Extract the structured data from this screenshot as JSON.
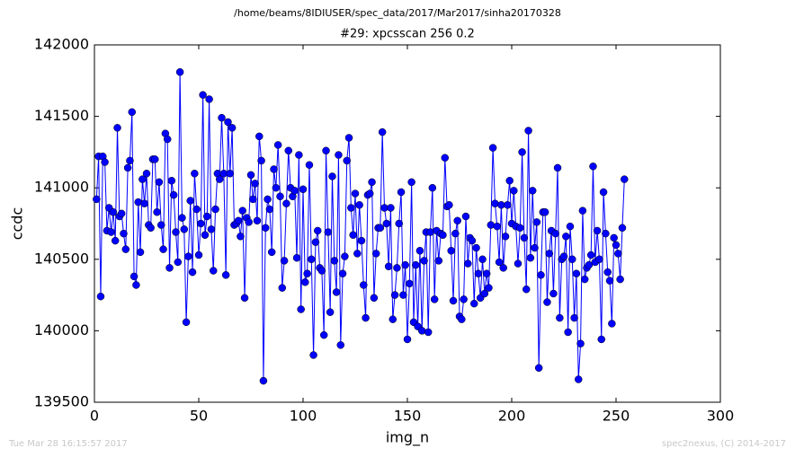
{
  "chart_data": {
    "type": "line",
    "suptitle": "/home/beams/8IDIUSER/spec_data/2017/Mar2017/sinha20170328",
    "title": "#29: xpcsscan 256 0.2",
    "xlabel": "img_n",
    "ylabel": "ccdc",
    "footer_left": "Tue Mar 28 16:15:57 2017",
    "footer_right": "spec2nexus, (C) 2014-2017",
    "color": "#0000ff",
    "marker": "o",
    "grid": false,
    "xlim": [
      0,
      300
    ],
    "xticks": [
      0,
      50,
      100,
      150,
      200,
      250,
      300
    ],
    "ylim": [
      139500,
      142000
    ],
    "yticks": [
      139500,
      140000,
      140500,
      141000,
      141500,
      142000
    ],
    "x": [
      1,
      2,
      3,
      4,
      5,
      6,
      7,
      8,
      9,
      10,
      11,
      12,
      13,
      14,
      15,
      16,
      17,
      18,
      19,
      20,
      21,
      22,
      23,
      24,
      25,
      26,
      27,
      28,
      29,
      30,
      31,
      32,
      33,
      34,
      35,
      36,
      37,
      38,
      39,
      40,
      41,
      42,
      43,
      44,
      45,
      46,
      47,
      48,
      49,
      50,
      51,
      52,
      53,
      54,
      55,
      56,
      57,
      58,
      59,
      60,
      61,
      62,
      63,
      64,
      65,
      66,
      67,
      68,
      69,
      70,
      71,
      72,
      73,
      74,
      75,
      76,
      77,
      78,
      79,
      80,
      81,
      82,
      83,
      84,
      85,
      86,
      87,
      88,
      89,
      90,
      91,
      92,
      93,
      94,
      95,
      96,
      97,
      98,
      99,
      100,
      101,
      102,
      103,
      104,
      105,
      106,
      107,
      108,
      109,
      110,
      111,
      112,
      113,
      114,
      115,
      116,
      117,
      118,
      119,
      120,
      121,
      122,
      123,
      124,
      125,
      126,
      127,
      128,
      129,
      130,
      131,
      132,
      133,
      134,
      135,
      136,
      137,
      138,
      139,
      140,
      141,
      142,
      143,
      144,
      145,
      146,
      147,
      148,
      149,
      150,
      151,
      152,
      153,
      154,
      155,
      156,
      157,
      158,
      159,
      160,
      161,
      162,
      163,
      164,
      165,
      166,
      167,
      168,
      169,
      170,
      171,
      172,
      173,
      174,
      175,
      176,
      177,
      178,
      179,
      180,
      181,
      182,
      183,
      184,
      185,
      186,
      187,
      188,
      189,
      190,
      191,
      192,
      193,
      194,
      195,
      196,
      197,
      198,
      199,
      200,
      201,
      202,
      203,
      204,
      205,
      206,
      207,
      208,
      209,
      210,
      211,
      212,
      213,
      214,
      215,
      216,
      217,
      218,
      219,
      220,
      221,
      222,
      223,
      224,
      225,
      226,
      227,
      228,
      229,
      230,
      231,
      232,
      233,
      234,
      235,
      236,
      237,
      238,
      239,
      240,
      241,
      242,
      243,
      244,
      245,
      246,
      247,
      248,
      249,
      250,
      251,
      252,
      253,
      254
    ],
    "values": [
      140920,
      141220,
      140240,
      141220,
      141180,
      140700,
      140860,
      140690,
      140830,
      140630,
      141420,
      140800,
      140820,
      140680,
      140570,
      141140,
      141190,
      141530,
      140380,
      140320,
      140900,
      140550,
      141060,
      140890,
      141100,
      140740,
      140720,
      141200,
      141200,
      140830,
      141040,
      140740,
      140570,
      141380,
      141340,
      140440,
      141050,
      140950,
      140690,
      140480,
      141810,
      140790,
      140710,
      140060,
      140520,
      140910,
      140410,
      141100,
      140850,
      140530,
      140750,
      141650,
      140670,
      140800,
      141620,
      140710,
      140420,
      140850,
      141100,
      141060,
      141490,
      141100,
      140390,
      141460,
      141100,
      141420,
      140740,
      140750,
      140770,
      140660,
      140840,
      140230,
      140790,
      140760,
      141090,
      140920,
      141030,
      140770,
      141360,
      141190,
      139650,
      140720,
      140920,
      140850,
      140550,
      141130,
      141000,
      141300,
      140940,
      140300,
      140490,
      140890,
      141260,
      141000,
      140940,
      140980,
      140510,
      141230,
      140150,
      140990,
      140340,
      140400,
      141160,
      140500,
      139830,
      140620,
      140700,
      140440,
      140420,
      139970,
      141260,
      140690,
      140130,
      141080,
      140490,
      140270,
      141230,
      139900,
      140400,
      140520,
      141190,
      141350,
      140860,
      140670,
      140960,
      140540,
      140880,
      140630,
      140320,
      140090,
      140950,
      140960,
      141040,
      140230,
      140540,
      140720,
      140720,
      141390,
      140860,
      140750,
      140450,
      140860,
      140080,
      140250,
      140440,
      140750,
      140970,
      140250,
      140460,
      139940,
      140330,
      141040,
      140060,
      140460,
      140030,
      140560,
      140000,
      140490,
      140690,
      139990,
      140690,
      141000,
      140220,
      140700,
      140490,
      140680,
      140670,
      141210,
      140870,
      140880,
      140560,
      140210,
      140680,
      140770,
      140100,
      140080,
      140220,
      140800,
      140470,
      140650,
      140630,
      140190,
      140580,
      140400,
      140230,
      140500,
      140260,
      140400,
      140300,
      140740,
      141280,
      140890,
      140730,
      140480,
      140880,
      140440,
      140660,
      140880,
      141050,
      140750,
      140980,
      140730,
      140470,
      140720,
      141250,
      140650,
      140290,
      141400,
      140510,
      140980,
      140580,
      140760,
      139740,
      140390,
      140830,
      140830,
      140200,
      140540,
      140700,
      140260,
      140680,
      141140,
      140090,
      140500,
      140520,
      140660,
      139990,
      140730,
      140500,
      140090,
      140400,
      139660,
      139910,
      140840,
      140360,
      140440,
      140460,
      140530,
      141150,
      140480,
      140700,
      140500,
      139940,
      140970,
      140680,
      140410,
      140350,
      140050,
      140650,
      140600,
      140540,
      140360,
      140720,
      141060
    ]
  }
}
